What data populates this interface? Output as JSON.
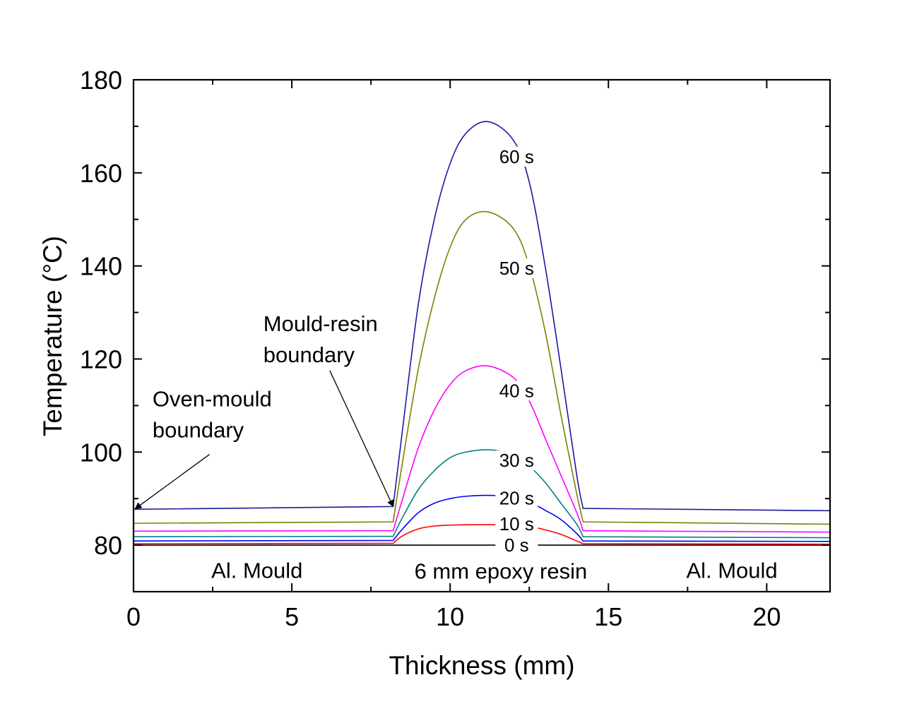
{
  "chart_data": {
    "type": "line",
    "title": "",
    "xlabel": "Thickness (mm)",
    "ylabel": "Temperature (°C)",
    "xlim": [
      0,
      22
    ],
    "ylim": [
      70,
      180
    ],
    "xticks": [
      0,
      5,
      10,
      15,
      20
    ],
    "yticks": [
      80,
      100,
      120,
      140,
      160,
      180
    ],
    "grid": false,
    "series": [
      {
        "name": "0 s",
        "color": "#000000",
        "x": [
          0,
          8.2,
          14.2,
          22
        ],
        "y": [
          80,
          80,
          80,
          80
        ],
        "label_at": [
          12.1,
          80
        ]
      },
      {
        "name": "10 s",
        "color": "#ff0000",
        "x": [
          0,
          8.2,
          8.5,
          9,
          9.5,
          10,
          11.2,
          12,
          12.5,
          13,
          13.5,
          14,
          14.2,
          22
        ],
        "y": [
          80.3,
          80.4,
          82,
          83.5,
          84.1,
          84.3,
          84.4,
          84.3,
          84,
          83.3,
          82.3,
          80.9,
          80.3,
          80.2
        ],
        "label_at": [
          12.1,
          84.6
        ]
      },
      {
        "name": "20 s",
        "color": "#0000ff",
        "x": [
          0,
          8.2,
          8.5,
          9,
          9.5,
          10,
          10.5,
          11.2,
          12,
          12.5,
          13,
          13.5,
          14,
          14.2,
          22
        ],
        "y": [
          80.9,
          81.0,
          83.5,
          87,
          89,
          90,
          90.5,
          90.7,
          90.3,
          89.3,
          87.5,
          85.5,
          82.5,
          80.9,
          80.8
        ],
        "label_at": [
          12.1,
          90.1
        ]
      },
      {
        "name": "30 s",
        "color": "#008080",
        "x": [
          0,
          8.2,
          8.5,
          9,
          9.5,
          10,
          10.5,
          11.2,
          12,
          12.5,
          13,
          13.5,
          14,
          14.2,
          22
        ],
        "y": [
          81.8,
          81.9,
          86,
          92,
          96,
          98.8,
          100,
          100.5,
          99.5,
          97,
          93.5,
          89,
          84.5,
          81.8,
          81.6
        ],
        "label_at": [
          12.1,
          98.2
        ]
      },
      {
        "name": "40 s",
        "color": "#ff00ff",
        "x": [
          0,
          8.2,
          8.5,
          9,
          9.5,
          10,
          10.5,
          11.2,
          12,
          12.5,
          13,
          13.5,
          14,
          14.2,
          22
        ],
        "y": [
          83.0,
          83.1,
          90,
          101,
          109,
          114.5,
          117.5,
          118.5,
          116,
          111,
          103,
          95,
          87,
          83.1,
          82.8
        ],
        "label_at": [
          12.1,
          113.2
        ]
      },
      {
        "name": "50 s",
        "color": "#808000",
        "x": [
          0,
          8.2,
          8.5,
          9,
          9.5,
          10,
          10.5,
          11.2,
          12,
          12.5,
          13,
          13.5,
          14,
          14.2,
          22
        ],
        "y": [
          84.7,
          85.0,
          98,
          118,
          133,
          144,
          150,
          151.6,
          148,
          140,
          126,
          108,
          91,
          85.0,
          84.5
        ],
        "label_at": [
          12.1,
          139.5
        ]
      },
      {
        "name": "60 s",
        "color": "#1a1aa0",
        "x": [
          0,
          8.2,
          8.5,
          9,
          9.5,
          10,
          10.5,
          11.2,
          12,
          12.5,
          13,
          13.5,
          14,
          14.2,
          22
        ],
        "y": [
          87.7,
          88.3,
          105,
          132,
          150,
          162,
          168.5,
          171,
          167,
          158,
          140,
          118,
          95,
          87.9,
          87.4
        ],
        "label_at": [
          12.1,
          163.5
        ]
      }
    ],
    "annotations": [
      {
        "lines": [
          "Mould-resin",
          "boundary"
        ],
        "text_at": [
          4.1,
          126
        ],
        "arrow_from": [
          6.2,
          117.5
        ],
        "arrow_to": [
          8.2,
          88.3
        ]
      },
      {
        "lines": [
          "Oven-mould",
          "boundary"
        ],
        "text_at": [
          0.6,
          109.8
        ],
        "arrow_from": [
          2.4,
          99.5
        ],
        "arrow_to": [
          0.05,
          87.8
        ]
      }
    ],
    "region_labels": [
      {
        "text": "Al. Mould",
        "at": [
          3.9,
          74.5
        ]
      },
      {
        "text": "6 mm epoxy resin",
        "at": [
          11.6,
          74.3
        ]
      },
      {
        "text": "Al. Mould",
        "at": [
          18.9,
          74.5
        ]
      }
    ]
  }
}
